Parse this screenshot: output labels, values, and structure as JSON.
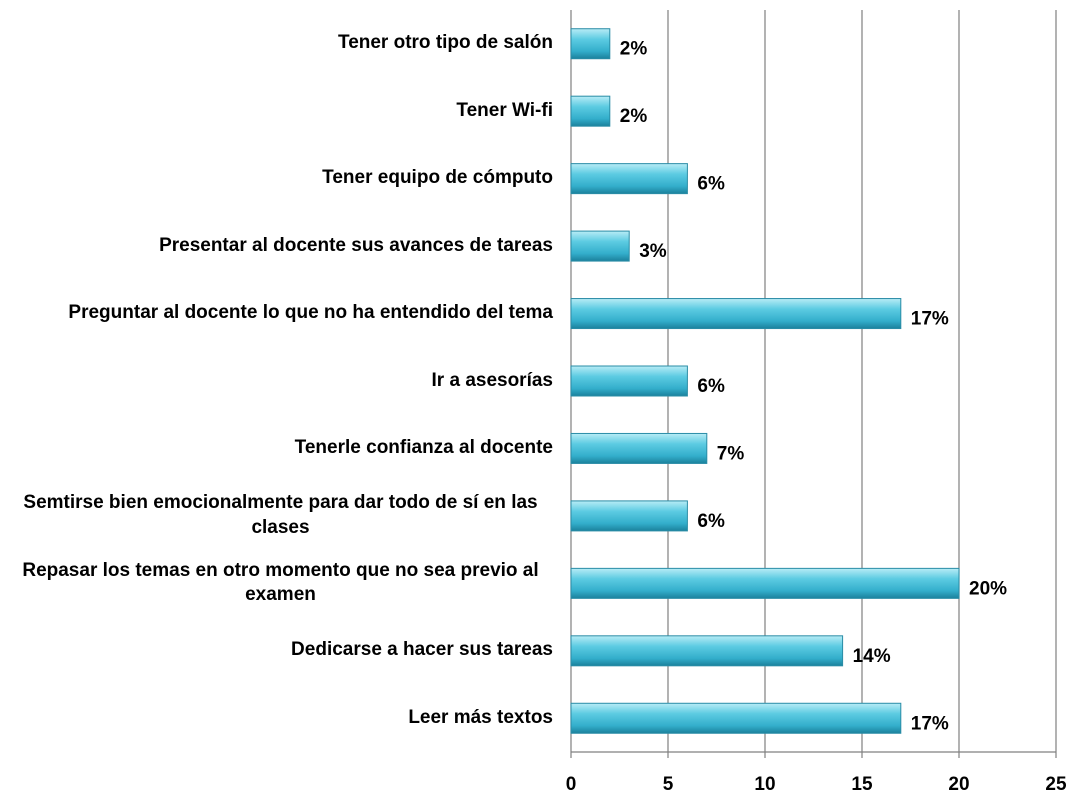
{
  "chart_data": {
    "type": "bar",
    "orientation": "horizontal",
    "categories": [
      "Tener otro tipo de salón",
      "Tener Wi-fi",
      "Tener equipo de cómputo",
      "Presentar al docente sus avances de tareas",
      "Preguntar al docente lo que no ha entendido del tema",
      "Ir a asesorías",
      "Tenerle confianza al docente",
      "Semtirse bien emocionalmente para dar todo de sí en las clases",
      "Repasar los temas en otro momento que no sea previo al examen",
      "Dedicarse a hacer sus tareas",
      "Leer más textos"
    ],
    "values": [
      2,
      2,
      6,
      3,
      17,
      6,
      7,
      6,
      20,
      14,
      17
    ],
    "value_labels": [
      "2%",
      "2%",
      "6%",
      "3%",
      "17%",
      "6%",
      "7%",
      "6%",
      "20%",
      "14%",
      "17%"
    ],
    "color": "#3fb8d4",
    "xlim": [
      0,
      25
    ],
    "xticks": [
      0,
      5,
      10,
      15,
      20,
      25
    ],
    "grid": true
  }
}
